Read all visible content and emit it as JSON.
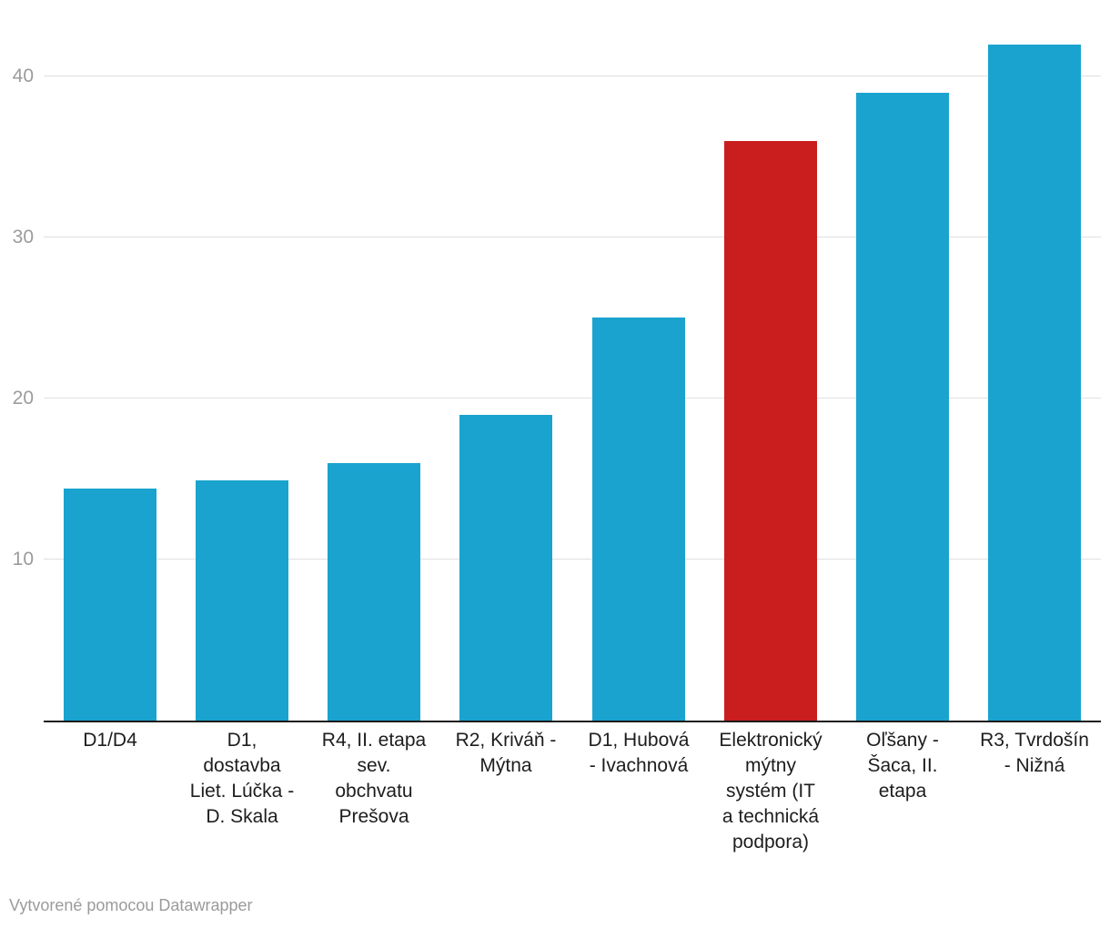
{
  "chart_data": {
    "type": "bar",
    "title": "",
    "xlabel": "",
    "ylabel": "",
    "categories": [
      "D1/D4",
      "D1, dostavba Liet. Lúčka - D. Skala",
      "R4, II. etapa sev. obchvatu Prešova",
      "R2, Kriváň - Mýtna",
      "D1, Hubová - Ivachnová",
      "Elektronický mýtny systém (IT a technická podpora)",
      "Oľšany - Šaca, II. etapa",
      "R3, Tvrdošín - Nižná"
    ],
    "category_lines": [
      [
        "D1/D4"
      ],
      [
        "D1,",
        "dostavba",
        "Liet. Lúčka -",
        "D. Skala"
      ],
      [
        "R4, II. etapa",
        "sev.",
        "obchvatu",
        "Prešova"
      ],
      [
        "R2, Kriváň -",
        "Mýtna"
      ],
      [
        "D1, Hubová",
        "- Ivachnová"
      ],
      [
        "Elektronický",
        "mýtny",
        "systém (IT",
        "a technická",
        "podpora)"
      ],
      [
        "Oľšany -",
        "Šaca, II.",
        "etapa"
      ],
      [
        "R3, Tvrdošín",
        "- Nižná"
      ]
    ],
    "values": [
      14.4,
      14.9,
      16,
      19,
      25,
      36,
      39,
      42
    ],
    "highlight_index": 5,
    "colors": {
      "bar": "#1aa3cf",
      "highlight": "#c91e1d",
      "gridline": "#e0e0e0",
      "axis_line": "#1a1a1a",
      "tick_label": "#9b9b9b",
      "category_label": "#1d1d1d"
    },
    "yticks": [
      10,
      20,
      30,
      40
    ],
    "ylim": [
      0,
      44.8
    ],
    "grid": true,
    "legend_position": "none"
  },
  "footer": {
    "text": "Vytvorené pomocou Datawrapper"
  }
}
